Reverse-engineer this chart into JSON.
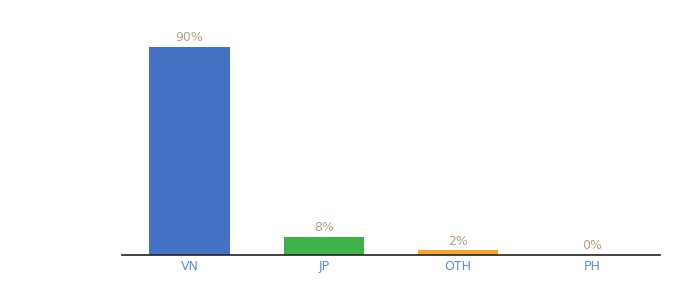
{
  "categories": [
    "VN",
    "JP",
    "OTH",
    "PH"
  ],
  "values": [
    90,
    8,
    2,
    0
  ],
  "labels": [
    "90%",
    "8%",
    "2%",
    "0%"
  ],
  "bar_colors": [
    "#4472c4",
    "#3db34a",
    "#f5a623",
    "#4472c4"
  ],
  "background_color": "#ffffff",
  "xlabel_color": "#5b8dd9",
  "label_color": "#b8a080",
  "ylim": [
    0,
    100
  ],
  "bar_width": 0.6,
  "label_fontsize": 9,
  "tick_fontsize": 9
}
